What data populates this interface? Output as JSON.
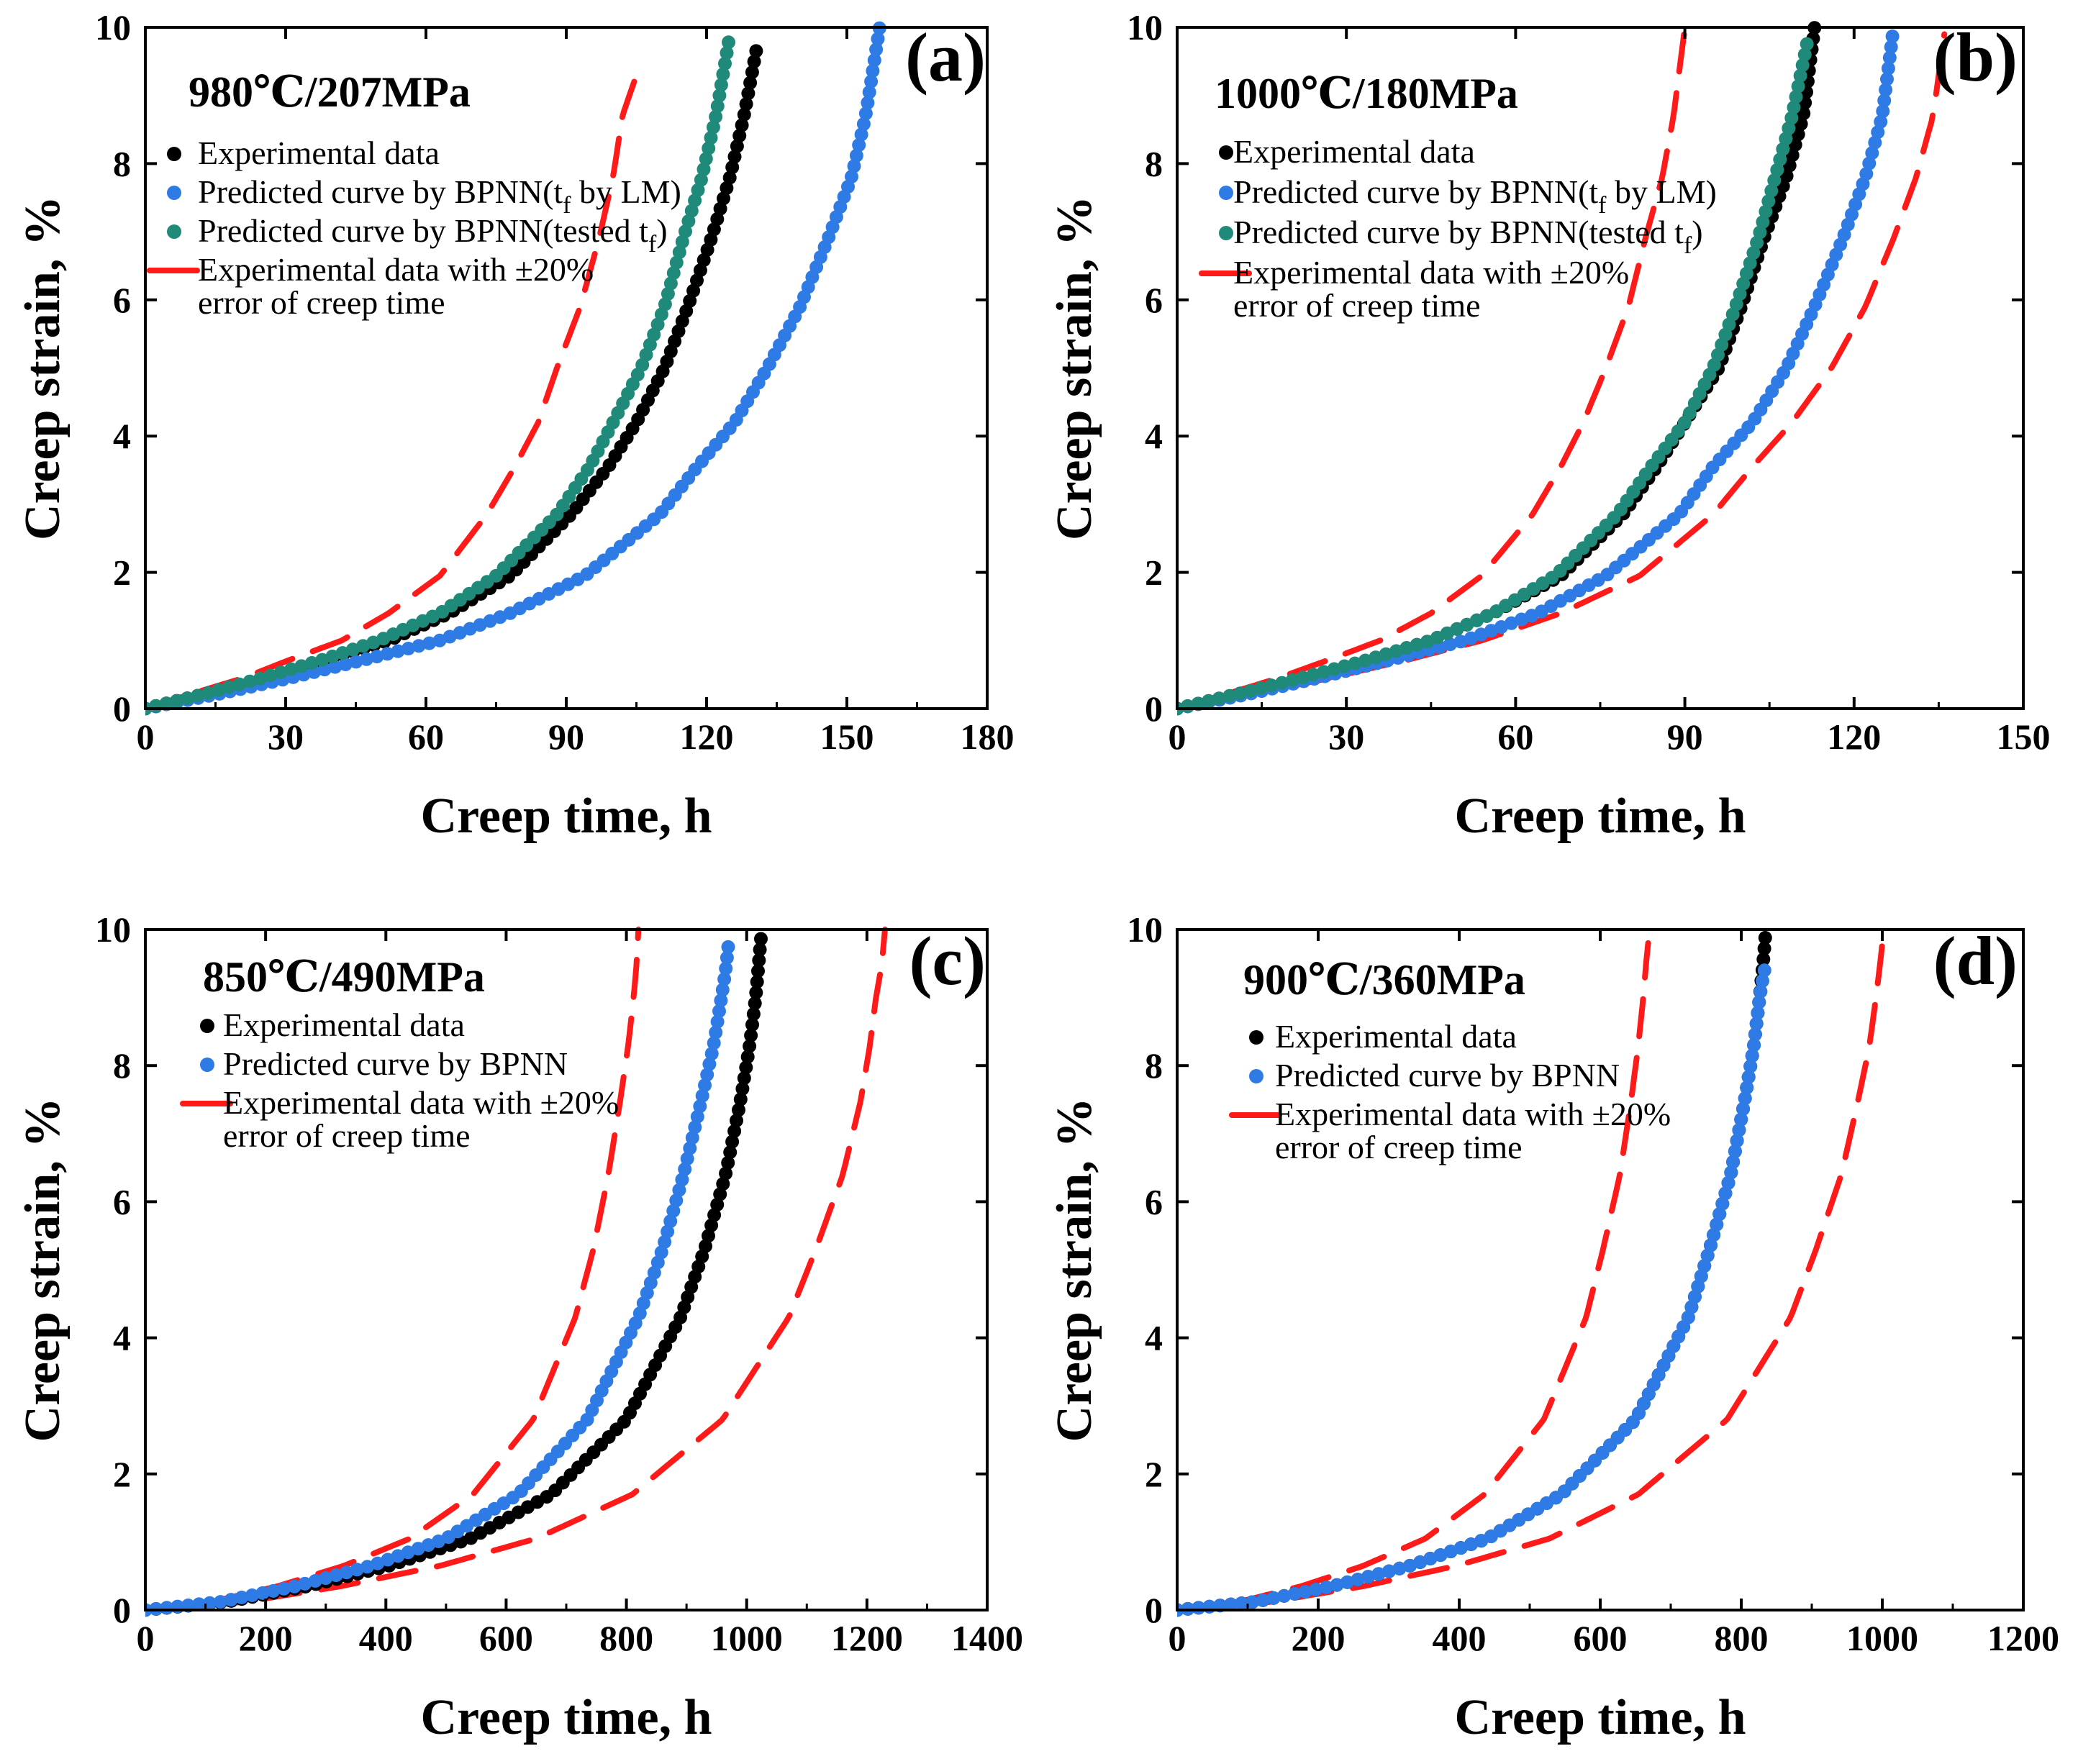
{
  "figure": {
    "marker_colors": {
      "experimental": "#000000",
      "bpnn_lm": "#2f7be6",
      "bpnn_tested": "#1f8a7a",
      "band": "#ff1a1a"
    }
  },
  "chart_data": [
    {
      "panel": "(a)",
      "type": "scatter",
      "condition": "980℃/207MPa",
      "xlabel": "Creep time, h",
      "ylabel": "Creep strain, %",
      "xlim": [
        0,
        180
      ],
      "ylim": [
        0,
        10
      ],
      "xticks": [
        0,
        30,
        60,
        90,
        120,
        150,
        180
      ],
      "yticks": [
        0,
        2,
        4,
        6,
        8,
        10
      ],
      "legend": [
        {
          "key": "exp",
          "label": "Experimental data",
          "kind": "dot",
          "color": "#000000"
        },
        {
          "key": "lm",
          "label": "Predicted curve by BPNN(t",
          "sub": "f",
          "label2": " by LM)",
          "kind": "dot",
          "color": "#2f7be6"
        },
        {
          "key": "tested",
          "label": "Predicted curve by BPNN(tested t",
          "sub": "f",
          "label2": ")",
          "kind": "dot",
          "color": "#1f8a7a"
        },
        {
          "key": "band",
          "label": "Experimental data with ±20%",
          "label_line2": "error of creep time",
          "kind": "dash",
          "color": "#ff1a1a"
        }
      ],
      "series": [
        {
          "name": "Experimental data",
          "style": "dot",
          "color": "#000000",
          "tf": 131,
          "x": [
            0,
            13,
            26,
            39,
            52,
            65,
            78,
            91,
            99,
            105,
            111,
            116,
            121,
            125,
            128,
            131
          ],
          "y": [
            0,
            0.22,
            0.45,
            0.72,
            1.0,
            1.4,
            1.95,
            2.85,
            3.55,
            4.2,
            5.0,
            5.9,
            6.9,
            7.8,
            8.7,
            9.8
          ]
        },
        {
          "name": "Predicted curve by BPNN(tf by LM)",
          "style": "dot",
          "color": "#2f7be6",
          "tf": 157,
          "x": [
            0,
            16,
            31,
            47,
            63,
            78,
            94,
            110,
            118,
            126,
            133,
            140,
            146,
            151,
            154,
            157
          ],
          "y": [
            0,
            0.22,
            0.45,
            0.72,
            1.0,
            1.4,
            1.95,
            2.85,
            3.55,
            4.2,
            5.0,
            5.9,
            6.9,
            7.8,
            8.7,
            10.0
          ]
        },
        {
          "name": "Predicted curve by BPNN(tested tf)",
          "style": "dot",
          "color": "#1f8a7a",
          "tf": 125,
          "x": [
            0,
            13,
            25,
            38,
            50,
            63,
            75,
            88,
            95,
            100,
            106,
            111,
            115,
            119,
            122,
            125
          ],
          "y": [
            0,
            0.22,
            0.45,
            0.72,
            1.0,
            1.4,
            1.95,
            2.85,
            3.55,
            4.2,
            5.0,
            5.9,
            6.9,
            7.8,
            8.7,
            9.9
          ]
        },
        {
          "name": "Experimental data -20% time",
          "style": "dash",
          "color": "#ff1a1a",
          "tf": 105,
          "x": [
            0,
            10,
            21,
            31,
            42,
            52,
            63,
            73,
            79,
            84,
            88,
            93,
            97,
            100,
            102,
            105
          ],
          "y": [
            0,
            0.22,
            0.45,
            0.72,
            1.0,
            1.4,
            1.95,
            2.85,
            3.55,
            4.2,
            5.0,
            5.9,
            6.9,
            7.8,
            8.7,
            9.3
          ]
        },
        {
          "name": "Experimental data +20% time",
          "style": "dash",
          "color": "#ff1a1a",
          "tf": 157,
          "x": [
            0,
            16,
            31,
            47,
            63,
            78,
            94,
            110,
            118,
            126,
            133,
            140,
            146,
            151,
            154,
            157
          ],
          "y": [
            0,
            0.22,
            0.45,
            0.72,
            1.0,
            1.4,
            1.95,
            2.85,
            3.55,
            4.2,
            5.0,
            5.9,
            6.9,
            7.8,
            8.7,
            9.8
          ]
        }
      ]
    },
    {
      "panel": "(b)",
      "type": "scatter",
      "condition": "1000℃/180MPa",
      "xlabel": "Creep time, h",
      "ylabel": "Creep strain, %",
      "xlim": [
        0,
        150
      ],
      "ylim": [
        0,
        10
      ],
      "xticks": [
        0,
        30,
        60,
        90,
        120,
        150
      ],
      "yticks": [
        0,
        2,
        4,
        6,
        8,
        10
      ],
      "legend": [
        {
          "key": "exp",
          "label": "Experimental data",
          "kind": "dot",
          "color": "#000000"
        },
        {
          "key": "lm",
          "label": "Predicted curve by BPNN(t",
          "sub": "f",
          "label2": " by LM)",
          "kind": "dot",
          "color": "#2f7be6"
        },
        {
          "key": "tested",
          "label": "Predicted curve by BPNN(tested t",
          "sub": "f",
          "label2": ")",
          "kind": "dot",
          "color": "#1f8a7a"
        },
        {
          "key": "band",
          "label": "Experimental data with ±20%",
          "label_line2": "error of creep time",
          "kind": "dash",
          "color": "#ff1a1a"
        }
      ],
      "series": [
        {
          "name": "Experimental data",
          "style": "dot",
          "color": "#000000",
          "tf": 113,
          "x": [
            0,
            11,
            23,
            34,
            45,
            56,
            68,
            79,
            85,
            90,
            96,
            100,
            104,
            108,
            111,
            113
          ],
          "y": [
            0,
            0.22,
            0.45,
            0.72,
            1.0,
            1.4,
            1.95,
            2.85,
            3.55,
            4.2,
            5.0,
            5.9,
            6.9,
            7.8,
            8.7,
            10.0
          ]
        },
        {
          "name": "Predicted curve by BPNN(tf by LM)",
          "style": "dot",
          "color": "#2f7be6",
          "tf": 127,
          "x": [
            0,
            13,
            25,
            38,
            51,
            64,
            76,
            89,
            95,
            102,
            108,
            113,
            118,
            122,
            125,
            127
          ],
          "y": [
            0,
            0.22,
            0.45,
            0.72,
            1.0,
            1.4,
            1.95,
            2.85,
            3.55,
            4.2,
            5.0,
            5.9,
            6.9,
            7.8,
            8.7,
            10.0
          ]
        },
        {
          "name": "Predicted curve by BPNN(tested tf)",
          "style": "dot",
          "color": "#1f8a7a",
          "tf": 112,
          "x": [
            0,
            11,
            22,
            34,
            45,
            56,
            67,
            78,
            84,
            90,
            95,
            99,
            103,
            106,
            109,
            112
          ],
          "y": [
            0,
            0.22,
            0.45,
            0.72,
            1.0,
            1.4,
            1.95,
            2.85,
            3.55,
            4.2,
            5.0,
            5.9,
            6.9,
            7.8,
            8.7,
            9.9
          ]
        },
        {
          "name": "Experimental data -20% time",
          "style": "dash",
          "color": "#ff1a1a",
          "tf": 90,
          "x": [
            0,
            9,
            18,
            27,
            36,
            45,
            54,
            63,
            68,
            72,
            76,
            80,
            83,
            86,
            88,
            90
          ],
          "y": [
            0,
            0.22,
            0.45,
            0.72,
            1.0,
            1.4,
            1.95,
            2.85,
            3.55,
            4.2,
            5.0,
            5.9,
            6.9,
            7.8,
            8.7,
            10.0
          ]
        },
        {
          "name": "Experimental data +20% time",
          "style": "dash",
          "color": "#ff1a1a",
          "tf": 136,
          "x": [
            0,
            14,
            27,
            41,
            54,
            68,
            82,
            95,
            102,
            109,
            116,
            122,
            127,
            131,
            134,
            136
          ],
          "y": [
            0,
            0.22,
            0.45,
            0.72,
            1.0,
            1.4,
            1.95,
            2.85,
            3.55,
            4.2,
            5.0,
            5.9,
            6.9,
            7.8,
            8.7,
            9.9
          ]
        }
      ]
    },
    {
      "panel": "(c)",
      "type": "scatter",
      "condition": "850℃/490MPa",
      "xlabel": "Creep time, h",
      "ylabel": "Creep strain, %",
      "xlim": [
        0,
        1400
      ],
      "ylim": [
        0,
        10
      ],
      "xticks": [
        0,
        200,
        400,
        600,
        800,
        1000,
        1200,
        1400
      ],
      "yticks": [
        0,
        2,
        4,
        6,
        8,
        10
      ],
      "legend": [
        {
          "key": "exp",
          "label": "Experimental data",
          "kind": "dot",
          "color": "#000000"
        },
        {
          "key": "pred",
          "label": "Predicted curve by BPNN",
          "kind": "dot",
          "color": "#2f7be6"
        },
        {
          "key": "band",
          "label": "Experimental data with ±20%",
          "label_line2": "error of creep time",
          "kind": "dash",
          "color": "#ff1a1a"
        }
      ],
      "series": [
        {
          "name": "Experimental data",
          "style": "dot",
          "color": "#000000",
          "tf": 1025,
          "x": [
            0,
            135,
            270,
            405,
            540,
            675,
            800,
            890,
            930,
            965,
            990,
            1005,
            1015,
            1020,
            1025
          ],
          "y": [
            0,
            0.12,
            0.35,
            0.65,
            1.05,
            1.7,
            2.8,
            4.3,
            5.3,
            6.4,
            7.5,
            8.3,
            9.0,
            9.5,
            10.0
          ]
        },
        {
          "name": "Predicted curve by BPNN",
          "style": "dot",
          "color": "#2f7be6",
          "tf": 970,
          "x": [
            0,
            125,
            250,
            375,
            500,
            620,
            735,
            820,
            860,
            895,
            925,
            945,
            958,
            965,
            970
          ],
          "y": [
            0,
            0.12,
            0.35,
            0.65,
            1.05,
            1.7,
            2.8,
            4.3,
            5.3,
            6.4,
            7.5,
            8.3,
            9.0,
            9.4,
            9.8
          ]
        },
        {
          "name": "Experimental data -20% time",
          "style": "dash",
          "color": "#ff1a1a",
          "tf": 820,
          "x": [
            0,
            110,
            220,
            330,
            440,
            545,
            645,
            715,
            745,
            770,
            790,
            803,
            812,
            817,
            820
          ],
          "y": [
            0,
            0.12,
            0.35,
            0.65,
            1.05,
            1.7,
            2.8,
            4.3,
            5.3,
            6.4,
            7.5,
            8.3,
            9.0,
            9.5,
            10.0
          ]
        },
        {
          "name": "Experimental data +20% time",
          "style": "dash",
          "color": "#ff1a1a",
          "tf": 1230,
          "x": [
            0,
            165,
            325,
            490,
            650,
            810,
            960,
            1070,
            1115,
            1160,
            1190,
            1205,
            1215,
            1225,
            1230
          ],
          "y": [
            0,
            0.12,
            0.35,
            0.65,
            1.05,
            1.7,
            2.8,
            4.3,
            5.3,
            6.4,
            7.5,
            8.3,
            9.0,
            9.5,
            10.0
          ]
        }
      ]
    },
    {
      "panel": "(d)",
      "type": "scatter",
      "condition": "900℃/360MPa",
      "xlabel": "Creep time, h",
      "ylabel": "Creep strain, %",
      "xlim": [
        0,
        1200
      ],
      "ylim": [
        0,
        10
      ],
      "xticks": [
        0,
        200,
        400,
        600,
        800,
        1000,
        1200
      ],
      "yticks": [
        0,
        2,
        4,
        6,
        8,
        10
      ],
      "legend": [
        {
          "key": "exp",
          "label": "Experimental data",
          "kind": "dot",
          "color": "#000000"
        },
        {
          "key": "pred",
          "label": "Predicted curve by BPNN",
          "kind": "dot",
          "color": "#2f7be6"
        },
        {
          "key": "band",
          "label": "Experimental data with ±20%",
          "label_line2": "error of creep time",
          "kind": "dash",
          "color": "#ff1a1a"
        }
      ],
      "series": [
        {
          "name": "Experimental data",
          "style": "dot",
          "color": "#000000",
          "tf": 835,
          "x": [
            0,
            110,
            220,
            330,
            440,
            545,
            650,
            725,
            755,
            785,
            805,
            818,
            826,
            831,
            835
          ],
          "y": [
            0,
            0.12,
            0.35,
            0.65,
            1.05,
            1.7,
            2.8,
            4.3,
            5.3,
            6.4,
            7.5,
            8.3,
            9.0,
            9.5,
            10.0
          ]
        },
        {
          "name": "Predicted curve by BPNN",
          "style": "dot",
          "color": "#2f7be6",
          "tf": 835,
          "x": [
            0,
            110,
            220,
            330,
            440,
            545,
            650,
            725,
            755,
            785,
            805,
            818,
            826,
            831,
            835
          ],
          "y": [
            0,
            0.12,
            0.35,
            0.65,
            1.05,
            1.7,
            2.8,
            4.3,
            5.3,
            6.4,
            7.5,
            8.3,
            9.0,
            9.3,
            9.5
          ]
        },
        {
          "name": "Experimental data -20% time",
          "style": "dash",
          "color": "#ff1a1a",
          "tf": 668,
          "x": [
            0,
            88,
            176,
            264,
            352,
            436,
            520,
            580,
            604,
            628,
            644,
            654,
            661,
            665,
            668
          ],
          "y": [
            0,
            0.12,
            0.35,
            0.65,
            1.05,
            1.7,
            2.8,
            4.3,
            5.3,
            6.4,
            7.5,
            8.3,
            9.0,
            9.5,
            9.8
          ]
        },
        {
          "name": "Experimental data +20% time",
          "style": "dash",
          "color": "#ff1a1a",
          "tf": 1002,
          "x": [
            0,
            132,
            264,
            396,
            528,
            654,
            780,
            870,
            906,
            942,
            966,
            982,
            991,
            997,
            1002
          ],
          "y": [
            0,
            0.12,
            0.35,
            0.65,
            1.05,
            1.7,
            2.8,
            4.3,
            5.3,
            6.4,
            7.5,
            8.3,
            9.0,
            9.5,
            10.0
          ]
        }
      ]
    }
  ]
}
